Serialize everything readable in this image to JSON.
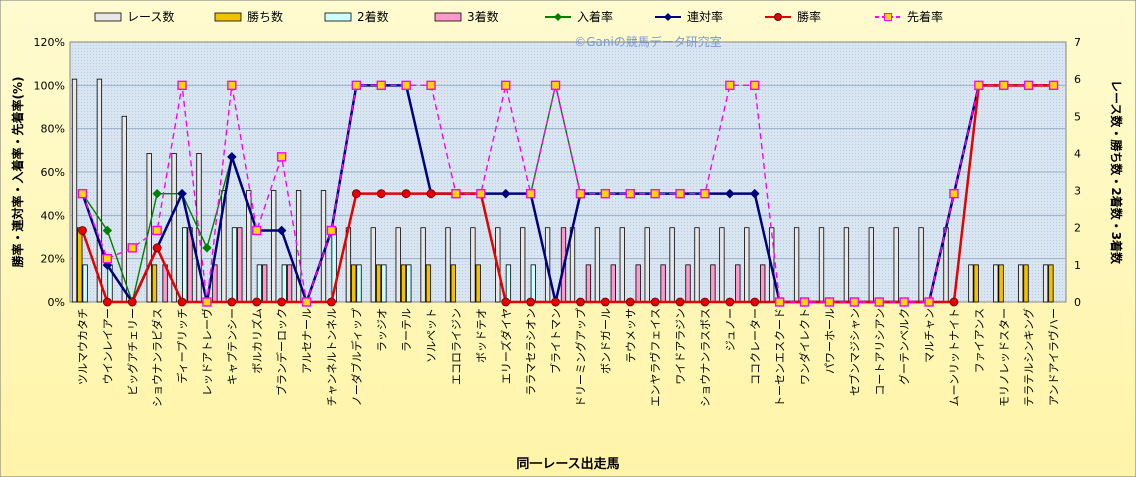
{
  "chart_data": {
    "type": "bar",
    "watermark": "©Ganiの競馬データ研究室",
    "xlabel": "同一レース出走馬",
    "ylabel_left": "勝率・連対率・入着率・先着率(%)",
    "ylabel_right": "レース数・勝ち数・2着数・3着数",
    "y_left_range": [
      0,
      120
    ],
    "y_left_ticks": [
      "0%",
      "20%",
      "40%",
      "60%",
      "80%",
      "100%",
      "120%"
    ],
    "y_right_range": [
      0,
      7
    ],
    "y_right_ticks": [
      "0",
      "1",
      "2",
      "3",
      "4",
      "5",
      "6",
      "7"
    ],
    "grid": true,
    "legend_position": "top",
    "categories": [
      "ツルマウカタチ",
      "ウインレイアー",
      "ビッグアチェリー",
      "ショウナンラピダス",
      "ディープリッチ",
      "レッドアトレーヴ",
      "キャプテンシー",
      "ボルカリズム",
      "ブランデーロック",
      "アルセナール",
      "チャンネルトンネル",
      "ノーダブルディップ",
      "ラッジオ",
      "ラーテル",
      "ソルペット",
      "エコロライジン",
      "ボッドテオ",
      "エリーズダイヤ",
      "ララマセラシオン",
      "ブライトマン",
      "ドリーミングアップ",
      "ボンドガール",
      "テウメッサ",
      "エンヤラヴフェイス",
      "ワイドアラジン",
      "ショウナンラスボス",
      "ジュノー",
      "ココクレーター",
      "トーセンエスクード",
      "ワンダイレクト",
      "パワーホール",
      "セブンマジシャン",
      "コートアリシアン",
      "グーテンベルク",
      "マルチャン",
      "ムーンリットナイト",
      "ファイアンス",
      "モリノレッドスター",
      "テラテルシンキング",
      "アンドアイラヴハー"
    ],
    "bar_series": [
      {
        "name": "レース数",
        "axis": "right",
        "color": "#e8e8e8",
        "values": [
          6,
          6,
          5,
          4,
          4,
          4,
          3,
          3,
          3,
          3,
          3,
          2,
          2,
          2,
          2,
          2,
          2,
          2,
          2,
          2,
          2,
          2,
          2,
          2,
          2,
          2,
          2,
          2,
          2,
          2,
          2,
          2,
          2,
          2,
          2,
          2,
          1,
          1,
          1,
          1
        ]
      },
      {
        "name": "勝ち数",
        "axis": "right",
        "color": "#f2c200",
        "values": [
          2,
          0,
          0,
          1,
          0,
          0,
          0,
          0,
          0,
          0,
          0,
          1,
          1,
          1,
          1,
          1,
          1,
          0,
          0,
          0,
          0,
          0,
          0,
          0,
          0,
          0,
          0,
          0,
          0,
          0,
          0,
          0,
          0,
          0,
          0,
          0,
          1,
          1,
          1,
          1
        ]
      },
      {
        "name": "2着数",
        "axis": "right",
        "color": "#ccffff",
        "values": [
          1,
          1,
          0,
          0,
          2,
          0,
          2,
          1,
          1,
          0,
          2,
          1,
          1,
          1,
          0,
          0,
          0,
          1,
          1,
          0,
          0,
          0,
          0,
          0,
          0,
          0,
          0,
          0,
          0,
          0,
          0,
          0,
          0,
          0,
          0,
          0,
          0,
          0,
          0,
          0
        ]
      },
      {
        "name": "3着数",
        "axis": "right",
        "color": "#ff99cc",
        "values": [
          0,
          0,
          0,
          1,
          2,
          1,
          2,
          1,
          1,
          0,
          0,
          0,
          0,
          0,
          0,
          0,
          0,
          0,
          0,
          2,
          1,
          1,
          1,
          1,
          1,
          1,
          1,
          1,
          0,
          0,
          0,
          0,
          0,
          0,
          0,
          0,
          0,
          0,
          0,
          0
        ]
      }
    ],
    "line_series": [
      {
        "name": "入着率",
        "axis": "left",
        "color": "#008000",
        "marker": "diamond",
        "dash": false,
        "values": [
          50,
          33,
          0,
          50,
          50,
          25,
          67,
          33,
          33,
          0,
          33,
          100,
          100,
          100,
          50,
          50,
          50,
          50,
          50,
          100,
          50,
          50,
          50,
          50,
          50,
          50,
          50,
          50,
          0,
          0,
          0,
          0,
          0,
          0,
          0,
          50,
          100,
          100,
          100,
          100
        ]
      },
      {
        "name": "連対率",
        "axis": "left",
        "color": "#000080",
        "marker": "diamond",
        "dash": false,
        "values": [
          50,
          17,
          0,
          25,
          50,
          0,
          67,
          33,
          33,
          0,
          33,
          100,
          100,
          100,
          50,
          50,
          50,
          50,
          50,
          0,
          50,
          50,
          50,
          50,
          50,
          50,
          50,
          50,
          0,
          0,
          0,
          0,
          0,
          0,
          0,
          50,
          100,
          100,
          100,
          100
        ]
      },
      {
        "name": "勝率",
        "axis": "left",
        "color": "#e60000",
        "marker": "circle",
        "dash": false,
        "values": [
          33,
          0,
          0,
          25,
          0,
          0,
          0,
          0,
          0,
          0,
          0,
          50,
          50,
          50,
          50,
          50,
          50,
          0,
          0,
          0,
          0,
          0,
          0,
          0,
          0,
          0,
          0,
          0,
          0,
          0,
          0,
          0,
          0,
          0,
          0,
          0,
          100,
          100,
          100,
          100
        ]
      },
      {
        "name": "先着率",
        "axis": "left",
        "color": "#ff00ff",
        "marker": "square",
        "dash": true,
        "values": [
          50,
          20,
          25,
          33,
          100,
          0,
          100,
          33,
          67,
          0,
          33,
          100,
          100,
          100,
          100,
          50,
          50,
          100,
          50,
          100,
          50,
          50,
          50,
          50,
          50,
          50,
          100,
          100,
          0,
          0,
          0,
          0,
          0,
          0,
          0,
          50,
          100,
          100,
          100,
          100
        ]
      }
    ]
  }
}
